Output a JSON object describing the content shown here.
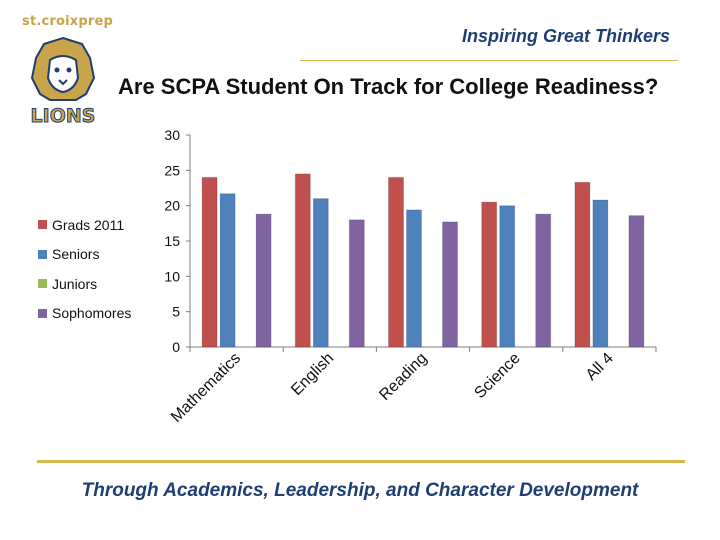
{
  "header": {
    "brand": "st.croixprep",
    "logo_text": "LIONS",
    "tagline": "Inspiring Great Thinkers",
    "title": "Are SCPA Student On Track for College Readiness?"
  },
  "footer": {
    "text": "Through Academics, Leadership, and Character Development"
  },
  "colors": {
    "navy": "#1f3f73",
    "gold": "#d9b74a"
  },
  "chart_data": {
    "type": "bar",
    "categories": [
      "Mathematics",
      "English",
      "Reading",
      "Science",
      "All 4"
    ],
    "series": [
      {
        "name": "Grads 2011",
        "color": "#c0504d",
        "values": [
          24.0,
          24.5,
          24.0,
          20.5,
          23.3
        ]
      },
      {
        "name": "Seniors",
        "color": "#4f81bd",
        "values": [
          21.7,
          21.0,
          19.4,
          20.0,
          20.8
        ]
      },
      {
        "name": "Juniors",
        "color": "#9bbb59",
        "values": [
          0,
          0,
          0,
          0,
          0
        ]
      },
      {
        "name": "Sophomores",
        "color": "#8064a2",
        "values": [
          18.8,
          18.0,
          17.7,
          18.8,
          18.6
        ]
      }
    ],
    "y_ticks": [
      "0",
      "5",
      "10",
      "15",
      "20",
      "25",
      "30"
    ],
    "ylim": [
      0,
      30
    ],
    "grid": false,
    "legend_position": "left"
  }
}
